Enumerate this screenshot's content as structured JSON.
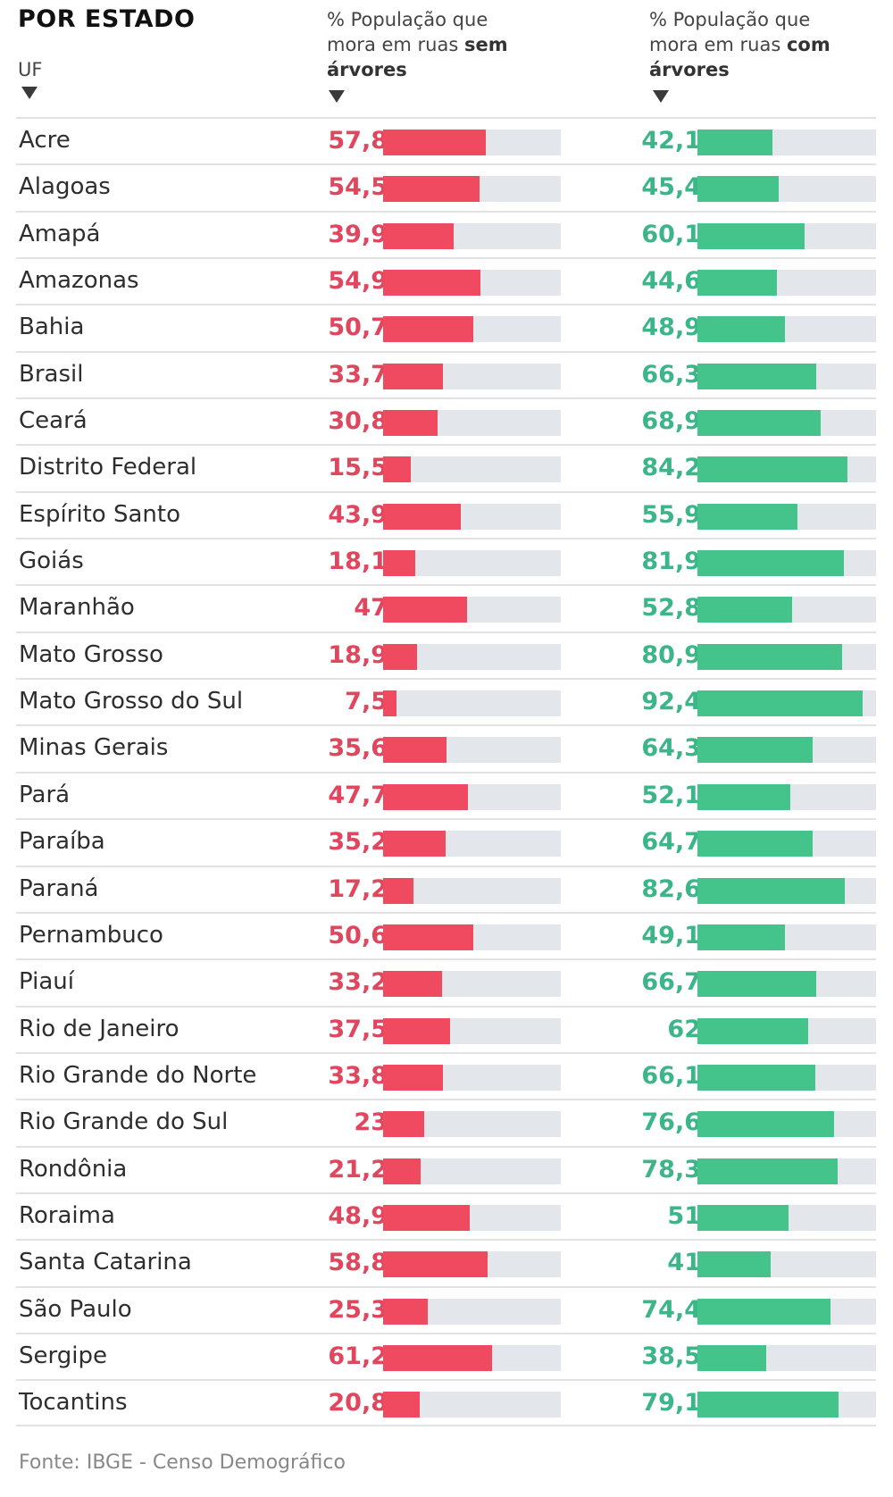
{
  "header": {
    "title": "POR ESTADO",
    "uf_label": "UF",
    "col_sem_prefix_line1": "% População que",
    "col_sem_prefix_line2": "mora em ruas ",
    "col_sem_bold": "sem",
    "col_sem_line3": "árvores",
    "col_com_prefix_line1": "% População que",
    "col_com_prefix_line2": "mora em ruas ",
    "col_com_bold": "com",
    "col_com_line3": "árvores"
  },
  "colors": {
    "sem_arvores": "#ef4a60",
    "com_arvores": "#44c48b",
    "track": "#e3e6ea"
  },
  "source": "Fonte: IBGE - Censo Demográfico",
  "chart_data": {
    "type": "bar",
    "title": "POR ESTADO",
    "xlabel": "",
    "ylabel": "UF",
    "xlim": [
      0,
      100
    ],
    "categories": [
      "Acre",
      "Alagoas",
      "Amapá",
      "Amazonas",
      "Bahia",
      "Brasil",
      "Ceará",
      "Distrito Federal",
      "Espírito Santo",
      "Goiás",
      "Maranhão",
      "Mato Grosso",
      "Mato Grosso do Sul",
      "Minas Gerais",
      "Pará",
      "Paraíba",
      "Paraná",
      "Pernambuco",
      "Piauí",
      "Rio de Janeiro",
      "Rio Grande do Norte",
      "Rio Grande do Sul",
      "Rondônia",
      "Roraima",
      "Santa Catarina",
      "São Paulo",
      "Sergipe",
      "Tocantins"
    ],
    "series": [
      {
        "name": "% População que mora em ruas sem árvores",
        "values": [
          57.8,
          54.5,
          39.9,
          54.9,
          50.7,
          33.7,
          30.8,
          15.5,
          43.9,
          18.1,
          47,
          18.9,
          7.5,
          35.6,
          47.7,
          35.2,
          17.2,
          50.6,
          33.2,
          37.5,
          33.8,
          23,
          21.2,
          48.9,
          58.8,
          25.3,
          61.2,
          20.8
        ],
        "labels": [
          "57,8",
          "54,5",
          "39,9",
          "54,9",
          "50,7",
          "33,7",
          "30,8",
          "15,5",
          "43,9",
          "18,1",
          "47",
          "18,9",
          "7,5",
          "35,6",
          "47,7",
          "35,2",
          "17,2",
          "50,6",
          "33,2",
          "37,5",
          "33,8",
          "23",
          "21,2",
          "48,9",
          "58,8",
          "25,3",
          "61,2",
          "20,8"
        ]
      },
      {
        "name": "% População que mora em ruas com árvores",
        "values": [
          42.1,
          45.4,
          60.1,
          44.6,
          48.9,
          66.3,
          68.9,
          84.2,
          55.9,
          81.9,
          52.8,
          80.9,
          92.4,
          64.3,
          52.1,
          64.7,
          82.6,
          49.1,
          66.7,
          62,
          66.1,
          76.6,
          78.3,
          51,
          41,
          74.4,
          38.5,
          79.1
        ],
        "labels": [
          "42,1",
          "45,4",
          "60,1",
          "44,6",
          "48,9",
          "66,3",
          "68,9",
          "84,2",
          "55,9",
          "81,9",
          "52,8",
          "80,9",
          "92,4",
          "64,3",
          "52,1",
          "64,7",
          "82,6",
          "49,1",
          "66,7",
          "62",
          "66,1",
          "76,6",
          "78,3",
          "51",
          "41",
          "74,4",
          "38,5",
          "79,1"
        ]
      }
    ]
  }
}
